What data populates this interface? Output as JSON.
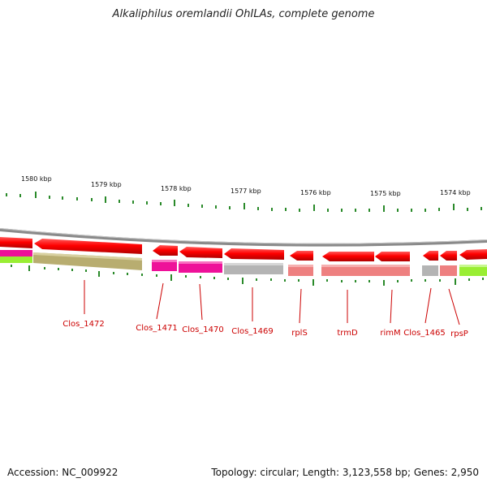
{
  "title": "Alkaliphilus oremlandii OhILAs, complete genome",
  "footer": {
    "accession": "Accession: NC_009922",
    "topology": "Topology: circular; Length: 3,123,558 bp; Genes: 2,950"
  },
  "colors": {
    "backbone": "#8a8a8a",
    "gene_arrow": "#ff0000",
    "tick": "#2a8a2a",
    "label": "#cc0000",
    "olive": "#b8ad70",
    "magenta": "#ee1199",
    "gray": "#b4b4b4",
    "salmon": "#ee8080",
    "lime": "#99ee33"
  },
  "kbp_labels": [
    "1580 kbp",
    "1579 kbp",
    "1578 kbp",
    "1577 kbp",
    "1576 kbp",
    "1575 kbp",
    "1574 kbp"
  ],
  "genes": [
    "Clos_1472",
    "Clos_1471",
    "Clos_1470",
    "Clos_1469",
    "rplS",
    "trmD",
    "rimM",
    "Clos_1465",
    "rpsP"
  ]
}
